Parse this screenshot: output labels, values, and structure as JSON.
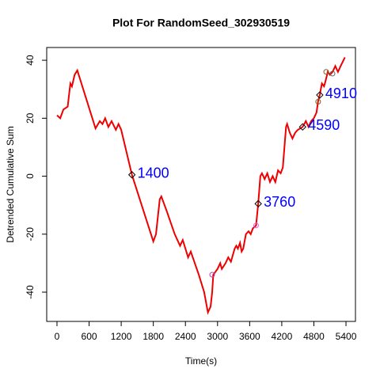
{
  "chart_data": {
    "type": "line",
    "title": "Plot For RandomSeed_302930519",
    "x_label": "Time(s)",
    "y_label": "Detrended Cumulative Sum",
    "xlim": [
      -192,
      5577
    ],
    "ylim": [
      -50.1,
      44.4
    ],
    "xticks": [
      0,
      600,
      1200,
      1800,
      2400,
      3000,
      3600,
      4200,
      4800,
      5400
    ],
    "yticks": [
      -40,
      -20,
      0,
      20,
      40
    ],
    "series": [
      {
        "name": "Detrended Cumulative Sum",
        "color": "#ee0000",
        "x": [
          0,
          60,
          120,
          200,
          250,
          280,
          330,
          380,
          720,
          800,
          850,
          900,
          960,
          1020,
          1100,
          1150,
          1200,
          1400,
          1800,
          1850,
          1920,
          1950,
          2050,
          2200,
          2300,
          2350,
          2450,
          2500,
          2650,
          2750,
          2820,
          2870,
          2900,
          2920,
          3000,
          3050,
          3080,
          3150,
          3200,
          3250,
          3320,
          3350,
          3380,
          3420,
          3450,
          3480,
          3530,
          3580,
          3620,
          3660,
          3720,
          3760,
          3800,
          3830,
          3880,
          3930,
          3980,
          4030,
          4080,
          4130,
          4180,
          4220,
          4280,
          4300,
          4350,
          4400,
          4450,
          4500,
          4590,
          4650,
          4700,
          4750,
          4800,
          4850,
          4880,
          4910,
          4950,
          4990,
          5020,
          5060,
          5100,
          5150,
          5200,
          5250,
          5300,
          5380
        ],
        "values": [
          21,
          20,
          23,
          24,
          32,
          31,
          35,
          36.5,
          16.5,
          19,
          18,
          20,
          17,
          19,
          16,
          18,
          16,
          0.5,
          -22.5,
          -20,
          -8,
          -7,
          -12,
          -20,
          -24,
          -22,
          -28,
          -26,
          -34,
          -40,
          -47,
          -45,
          -40,
          -34,
          -32,
          -30,
          -32,
          -30,
          -28,
          -29.5,
          -25,
          -24,
          -25,
          -23,
          -26,
          -25,
          -20,
          -19,
          -20,
          -18,
          -17,
          -9.5,
          0,
          1,
          -1,
          1,
          -2,
          0,
          -2,
          2,
          1,
          3,
          17,
          18,
          15,
          13,
          15,
          16,
          17,
          19,
          17,
          19,
          20,
          22,
          26,
          28,
          32,
          31,
          33,
          36,
          35,
          36,
          38,
          36,
          38,
          41
        ]
      }
    ],
    "points": [
      {
        "x": 1400,
        "y": 0.5,
        "shape": "diamond",
        "color": "#000000"
      },
      {
        "x": 3760,
        "y": -9.5,
        "shape": "diamond",
        "color": "#000000"
      },
      {
        "x": 4590,
        "y": 17,
        "shape": "diamond",
        "color": "#000000"
      },
      {
        "x": 4910,
        "y": 28,
        "shape": "diamond",
        "color": "#000000"
      },
      {
        "x": 2900,
        "y": -34,
        "shape": "circle",
        "color": "#b040b0"
      },
      {
        "x": 3720,
        "y": -17,
        "shape": "circle",
        "color": "#e060e0"
      },
      {
        "x": 4880,
        "y": 25.7,
        "shape": "circle",
        "color": "#806020"
      },
      {
        "x": 5030,
        "y": 36,
        "shape": "circle",
        "color": "#806020"
      },
      {
        "x": 5148,
        "y": 35.4,
        "shape": "circle",
        "color": "#606060"
      }
    ],
    "annotations": [
      {
        "text": "1400",
        "x": 1400,
        "y": 0.5
      },
      {
        "text": "3760",
        "x": 3760,
        "y": -9.5
      },
      {
        "text": "4590",
        "x": 4590,
        "y": 17
      },
      {
        "text": "4910",
        "x": 4910,
        "y": 28
      }
    ]
  }
}
